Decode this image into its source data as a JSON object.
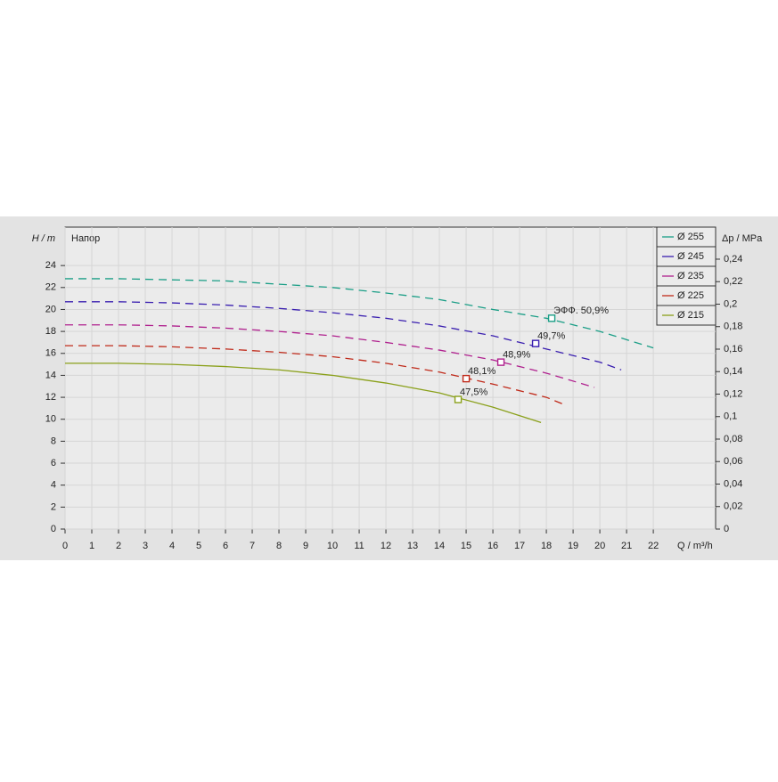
{
  "chart_data": {
    "type": "line",
    "y_label": "H / m",
    "y2_label": "Δp / MPa",
    "x_label": "Q / m³/h",
    "annotation": "Напор",
    "xlim": [
      0,
      24.33
    ],
    "xticks": [
      0,
      1,
      2,
      3,
      4,
      5,
      6,
      7,
      8,
      9,
      10,
      11,
      12,
      13,
      14,
      15,
      16,
      17,
      18,
      19,
      20,
      21,
      22
    ],
    "ylim": [
      0,
      27.5
    ],
    "yticks": [
      0,
      2,
      4,
      6,
      8,
      10,
      12,
      14,
      16,
      18,
      20,
      22,
      24
    ],
    "y2lim": [
      0,
      0.2685
    ],
    "y2ticks": [
      0,
      {
        "value": 0.02,
        "label": "0,02"
      },
      {
        "value": 0.04,
        "label": "0,04"
      },
      {
        "value": 0.06,
        "label": "0,06"
      },
      {
        "value": 0.08,
        "label": "0,08"
      },
      {
        "value": 0.1,
        "label": "0,1"
      },
      {
        "value": 0.12,
        "label": "0,12"
      },
      {
        "value": 0.14,
        "label": "0,14"
      },
      {
        "value": 0.16,
        "label": "0,16"
      },
      {
        "value": 0.18,
        "label": "0,18"
      },
      {
        "value": 0.2,
        "label": "0,2"
      },
      {
        "value": 0.22,
        "label": "0,22"
      },
      {
        "value": 0.24,
        "label": "0,24"
      }
    ],
    "grid": true,
    "legend": "top-right",
    "series": [
      {
        "name": "Ø 255",
        "color": "#1a9e86",
        "style": "dashed",
        "x": [
          0,
          2,
          4,
          6,
          8,
          10,
          12,
          14,
          16,
          18,
          20,
          22
        ],
        "values": [
          22.8,
          22.8,
          22.7,
          22.6,
          22.3,
          22.0,
          21.5,
          20.9,
          20.0,
          19.2,
          18.0,
          16.5
        ],
        "point": {
          "x": 18.2,
          "y": 19.2,
          "label": "ЭФФ.  50,9%"
        }
      },
      {
        "name": "Ø 245",
        "color": "#3a1fb0",
        "style": "dashed",
        "x": [
          0,
          2,
          4,
          6,
          8,
          10,
          12,
          14,
          16,
          18,
          20,
          20.8
        ],
        "values": [
          20.7,
          20.7,
          20.6,
          20.4,
          20.1,
          19.7,
          19.2,
          18.5,
          17.6,
          16.4,
          15.2,
          14.5
        ],
        "point": {
          "x": 17.6,
          "y": 16.9,
          "label": "49,7%"
        }
      },
      {
        "name": "Ø 235",
        "color": "#b0208e",
        "style": "dashed",
        "x": [
          0,
          2,
          4,
          6,
          8,
          10,
          12,
          14,
          16,
          18,
          19.8
        ],
        "values": [
          18.6,
          18.6,
          18.5,
          18.3,
          18.0,
          17.6,
          17.0,
          16.3,
          15.4,
          14.2,
          12.9
        ],
        "point": {
          "x": 16.3,
          "y": 15.2,
          "label": "48,9%"
        }
      },
      {
        "name": "Ø 225",
        "color": "#c02a1a",
        "style": "dashed",
        "x": [
          0,
          2,
          4,
          6,
          8,
          10,
          12,
          14,
          16,
          18,
          18.6
        ],
        "values": [
          16.7,
          16.7,
          16.6,
          16.4,
          16.1,
          15.7,
          15.1,
          14.3,
          13.2,
          12.0,
          11.4
        ],
        "point": {
          "x": 15.0,
          "y": 13.7,
          "label": "48,1%"
        }
      },
      {
        "name": "Ø 215",
        "color": "#8aa01a",
        "style": "solid",
        "x": [
          0,
          2,
          4,
          6,
          8,
          10,
          12,
          14,
          16,
          17.8
        ],
        "values": [
          15.1,
          15.1,
          15.0,
          14.8,
          14.5,
          14.0,
          13.3,
          12.4,
          11.1,
          9.7
        ],
        "point": {
          "x": 14.7,
          "y": 11.8,
          "label": "47,5%"
        }
      }
    ]
  }
}
